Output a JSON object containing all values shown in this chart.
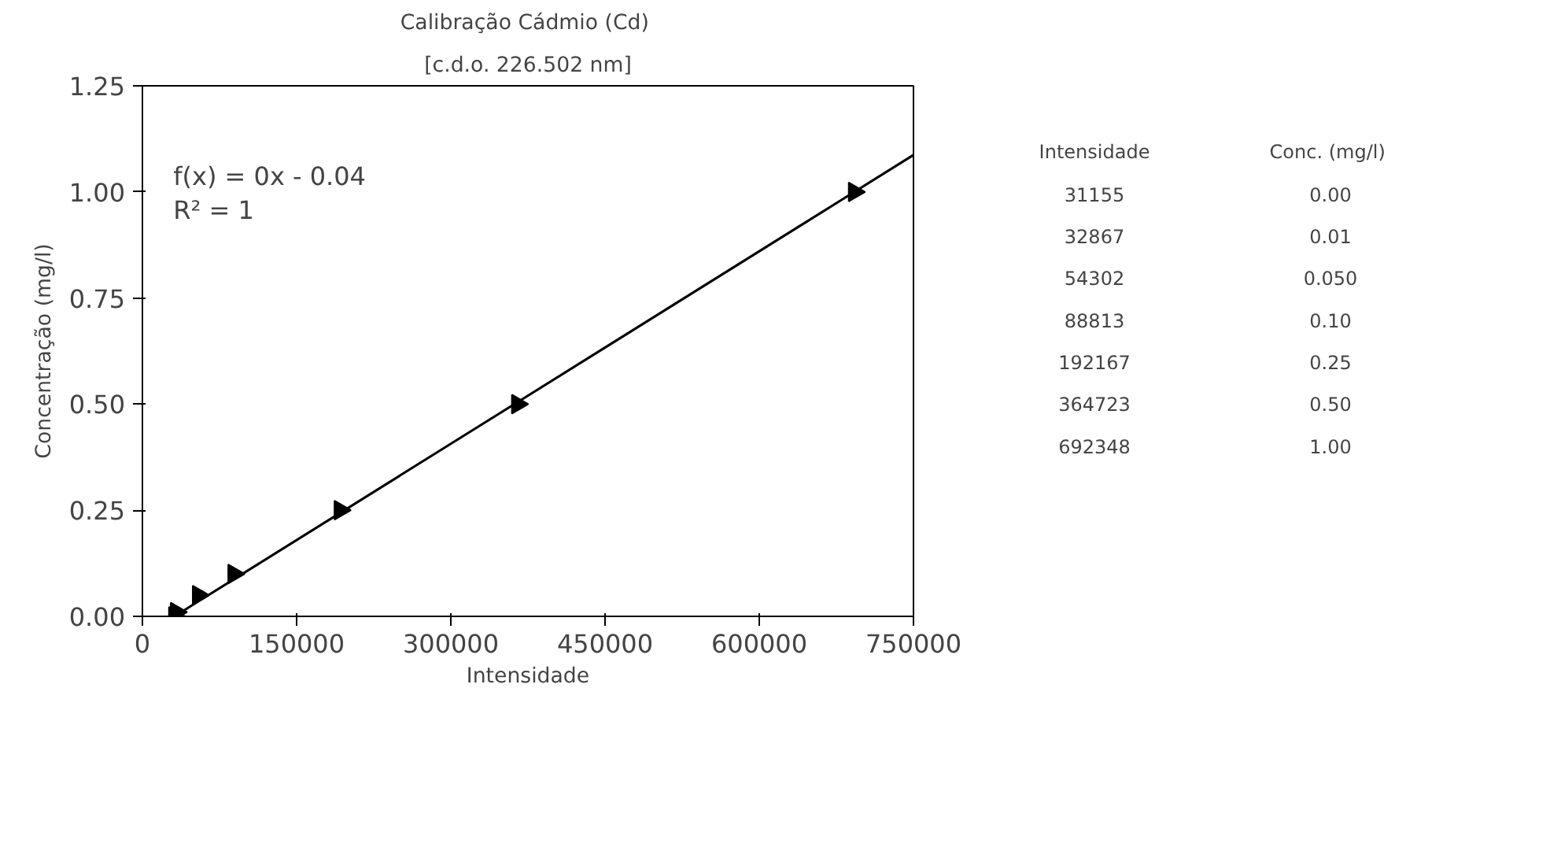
{
  "chart_data": [
    {
      "type": "scatter",
      "title": "Calibração  Cádmio (Cd)",
      "subtitle": "[c.d.o. 226.502 nm]",
      "xlabel": "Intensidade",
      "ylabel": "Concentração (mg/l)",
      "x": [
        31155,
        32867,
        54302,
        88813,
        192167,
        364723,
        692348
      ],
      "series": [
        {
          "color": "#000000",
          "values": [
            0.0,
            0.01,
            0.05,
            0.1,
            0.25,
            0.5,
            1.0
          ]
        },
        {
          "type": "line",
          "marker": "none",
          "color": "#000000",
          "x": [
            31155,
            750000
          ],
          "values": [
            0.0,
            1.087
          ]
        }
      ],
      "marker": "triangle",
      "grid": false,
      "xlim": [
        0,
        750000
      ],
      "xticks": [
        0,
        150000,
        300000,
        450000,
        600000,
        750000
      ],
      "ylim": [
        0,
        1.25
      ],
      "yticks": [
        {
          "value": 0,
          "label": "0.00"
        },
        {
          "value": 0.25,
          "label": "0.25"
        },
        {
          "value": 0.5,
          "label": "0.50"
        },
        {
          "value": 0.75,
          "label": "0.75"
        },
        {
          "value": 1,
          "label": "1.00"
        },
        {
          "value": 1.25,
          "label": "1.25"
        }
      ],
      "annotations": [
        "f(x) = 0x - 0.04",
        "R² = 1"
      ]
    },
    {
      "type": "other",
      "annotations": [
        "Intensidade",
        "Conc.  (mg/l)",
        "31155",
        "0.00",
        "32867",
        "0.01",
        "54302",
        "0.050",
        "88813",
        "0.10",
        "192167",
        "0.25",
        "364723",
        "0.50",
        "692348",
        "1.00"
      ]
    }
  ]
}
